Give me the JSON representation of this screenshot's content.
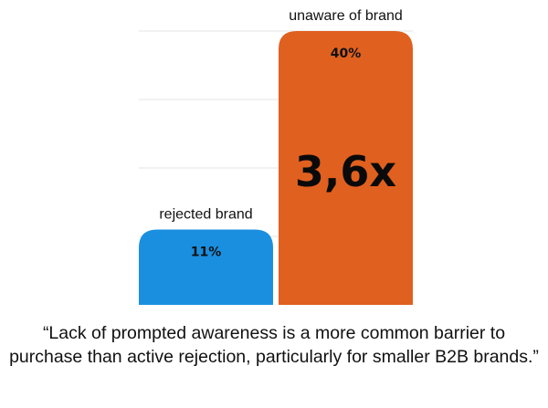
{
  "chart_data": {
    "type": "bar",
    "categories": [
      "rejected brand",
      "unaware of brand"
    ],
    "values": [
      11,
      40
    ],
    "value_labels": [
      "11%",
      "40%"
    ],
    "colors": [
      "#1a8fe0",
      "#e0601f"
    ],
    "ylim": [
      0,
      40
    ],
    "grid": true,
    "annotation": "3,6x",
    "title": "",
    "xlabel": "",
    "ylabel": ""
  },
  "quote": "“Lack of prompted awareness is a more common barrier to purchase than active rejection, particularly for smaller B2B brands.”"
}
